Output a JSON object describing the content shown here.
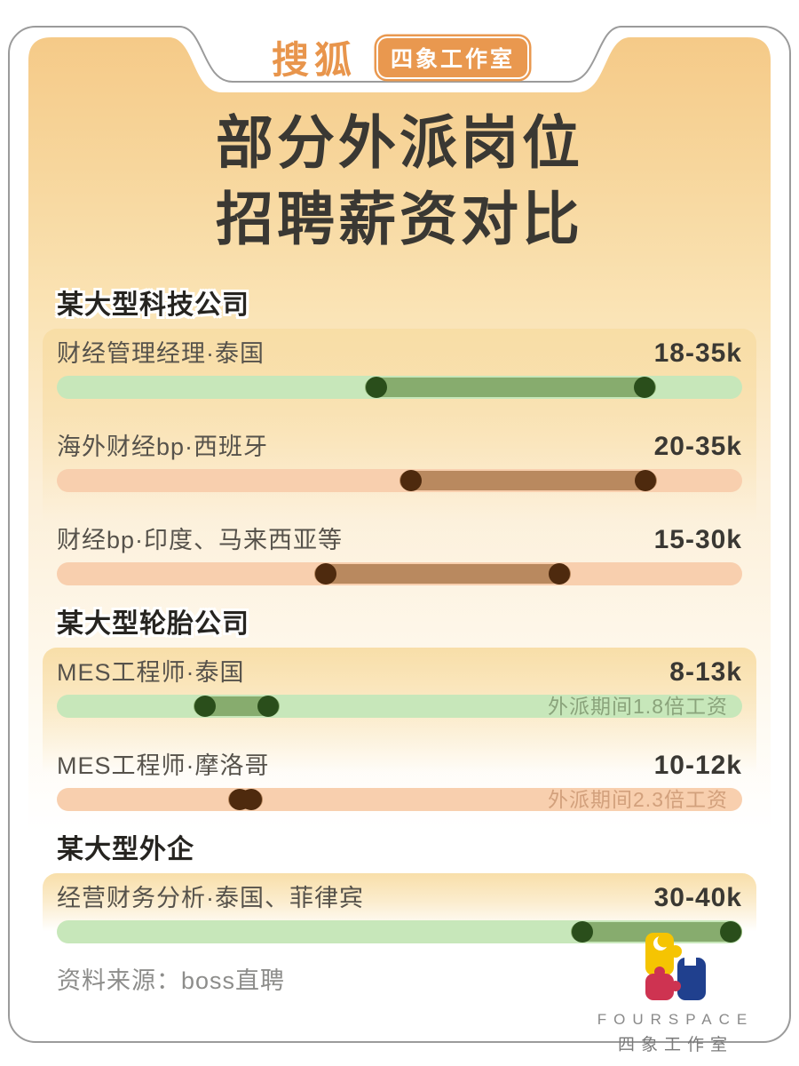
{
  "header": {
    "brand": "搜狐",
    "studio_badge": "四象工作室"
  },
  "title": {
    "line1": "部分外派岗位",
    "line2": "招聘薪资对比"
  },
  "chart_data": {
    "type": "bar",
    "subtype": "salary-range",
    "unit": "k (千元/月)",
    "axis_min_k": 0,
    "axis_max_k": 40,
    "groups": [
      {
        "company": "某大型科技公司",
        "positions": [
          {
            "label": "财经管理经理·泰国",
            "min": 18,
            "max": 35,
            "salary_label": "18-35k",
            "color": "green"
          },
          {
            "label": "海外财经bp·西班牙",
            "min": 20,
            "max": 35,
            "salary_label": "20-35k",
            "color": "orange"
          },
          {
            "label": "财经bp·印度、马来西亚等",
            "min": 15,
            "max": 30,
            "salary_label": "15-30k",
            "color": "orange"
          }
        ]
      },
      {
        "company": "某大型轮胎公司",
        "positions": [
          {
            "label": "MES工程师·泰国",
            "min": 8,
            "max": 13,
            "salary_label": "8-13k",
            "color": "green",
            "note": "外派期间1.8倍工资"
          },
          {
            "label": "MES工程师·摩洛哥",
            "min": 10,
            "max": 12,
            "salary_label": "10-12k",
            "color": "orange",
            "note": "外派期间2.3倍工资"
          }
        ]
      },
      {
        "company": "某大型外企",
        "positions": [
          {
            "label": "经营财务分析·泰国、菲律宾",
            "min": 30,
            "max": 40,
            "salary_label": "30-40k",
            "color": "green"
          }
        ]
      }
    ]
  },
  "footer": {
    "source": "资料来源：boss直聘",
    "logo_en": "FOURSPACE",
    "logo_cn": "四象工作室"
  },
  "palette": {
    "accent_orange": "#E9984F",
    "page_gradient_top": "#F5CA88",
    "card_cream": "#F8DDA5",
    "bar_green_track": "#C7E7BA",
    "bar_green_range": "#87AC6E",
    "bar_green_dot": "#2A4E1B",
    "bar_orange_track": "#F8CFAE",
    "bar_orange_range": "#B9895F",
    "bar_orange_dot": "#4E2A0E",
    "title_text": "#3A3833",
    "label_text": "#56524B",
    "note_green": "#8AA37B",
    "note_orange": "#D2A07C",
    "logo_yellow": "#F5C402",
    "logo_red": "#CE3351",
    "logo_blue": "#20408E"
  }
}
